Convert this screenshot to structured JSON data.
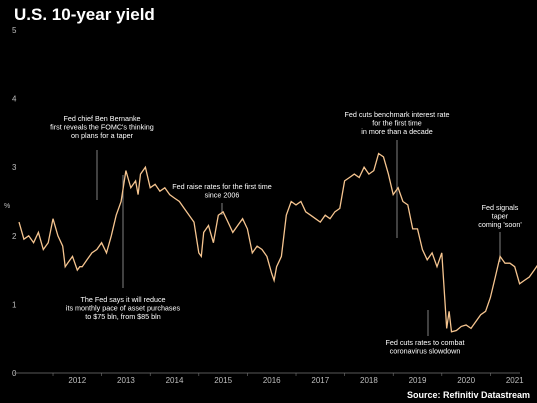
{
  "chart_data": {
    "type": "line",
    "title": "U.S. 10-year yield",
    "source": "Source: Refinitiv Datastream",
    "y_unit": "%",
    "xlabel": "",
    "ylabel": "",
    "ylim": [
      0,
      5
    ],
    "y_ticks": [
      "0",
      "1",
      "2",
      "3",
      "4",
      "5"
    ],
    "x_ticks": [
      "2012",
      "2013",
      "2014",
      "2015",
      "2016",
      "2017",
      "2018",
      "2019",
      "2020",
      "2021"
    ],
    "grid": false,
    "series": [
      {
        "x": [
          2011.3,
          2011.4,
          2011.5,
          2011.6,
          2011.7,
          2011.8,
          2011.9,
          2012.0,
          2012.1,
          2012.2,
          2012.25,
          2012.3,
          2012.4,
          2012.5,
          2012.55,
          2012.6,
          2012.7,
          2012.8,
          2012.9,
          2013.0,
          2013.1,
          2013.2,
          2013.3,
          2013.4,
          2013.5,
          2013.6,
          2013.7,
          2013.75,
          2013.8,
          2013.9,
          2014.0,
          2014.1,
          2014.2,
          2014.3,
          2014.4,
          2014.5,
          2014.6,
          2014.7,
          2014.8,
          2014.9,
          2015.0,
          2015.05,
          2015.1,
          2015.2,
          2015.3,
          2015.4,
          2015.5,
          2015.6,
          2015.7,
          2015.8,
          2015.9,
          2016.0,
          2016.1,
          2016.2,
          2016.3,
          2016.4,
          2016.5,
          2016.55,
          2016.6,
          2016.7,
          2016.8,
          2016.9,
          2017.0,
          2017.1,
          2017.2,
          2017.3,
          2017.4,
          2017.5,
          2017.6,
          2017.7,
          2017.8,
          2017.9,
          2018.0,
          2018.1,
          2018.2,
          2018.3,
          2018.4,
          2018.5,
          2018.6,
          2018.7,
          2018.8,
          2018.9,
          2019.0,
          2019.1,
          2019.2,
          2019.3,
          2019.4,
          2019.5,
          2019.6,
          2019.7,
          2019.8,
          2019.9,
          2020.0,
          2020.1,
          2020.15,
          2020.2,
          2020.3,
          2020.4,
          2020.5,
          2020.6,
          2020.7,
          2020.8,
          2020.9,
          2021.0,
          2021.1,
          2021.2,
          2021.3,
          2021.4,
          2021.5,
          2021.6,
          2021.7,
          2021.8,
          2021.9,
          2022.0,
          2022.1,
          2022.2,
          2022.3,
          2022.4
        ],
        "y": [
          2.2,
          1.95,
          2.0,
          1.9,
          2.05,
          1.8,
          1.9,
          2.25,
          2.0,
          1.85,
          1.55,
          1.6,
          1.7,
          1.5,
          1.55,
          1.55,
          1.65,
          1.75,
          1.8,
          1.9,
          1.75,
          2.0,
          2.3,
          2.5,
          2.95,
          2.7,
          2.8,
          2.6,
          2.9,
          3.0,
          2.7,
          2.75,
          2.65,
          2.7,
          2.6,
          2.55,
          2.5,
          2.4,
          2.3,
          2.2,
          1.75,
          1.7,
          2.05,
          2.15,
          1.9,
          2.3,
          2.35,
          2.2,
          2.05,
          2.15,
          2.25,
          2.1,
          1.75,
          1.85,
          1.8,
          1.7,
          1.45,
          1.35,
          1.55,
          1.7,
          2.3,
          2.5,
          2.45,
          2.5,
          2.35,
          2.3,
          2.25,
          2.2,
          2.3,
          2.25,
          2.35,
          2.4,
          2.8,
          2.85,
          2.9,
          2.85,
          3.0,
          2.9,
          2.95,
          3.2,
          3.15,
          2.9,
          2.6,
          2.7,
          2.5,
          2.45,
          2.1,
          2.1,
          1.8,
          1.65,
          1.75,
          1.55,
          1.75,
          0.65,
          0.9,
          0.6,
          0.62,
          0.68,
          0.7,
          0.65,
          0.75,
          0.85,
          0.9,
          1.1,
          1.4,
          1.7,
          1.6,
          1.6,
          1.55,
          1.3,
          1.35,
          1.4,
          1.5,
          1.6,
          1.55,
          1.6,
          1.55,
          1.6
        ]
      }
    ],
    "annotations": [
      {
        "lines": [
          "Fed chief Ben Bernanke",
          "first reveals the FOMC's thinking",
          "on plans for a taper"
        ]
      },
      {
        "lines": [
          "The Fed says it will reduce",
          "its monthly pace of asset purchases",
          "to $75 bln, from $85 bln"
        ]
      },
      {
        "lines": [
          "Fed raise rates for the first time",
          "since 2006"
        ]
      },
      {
        "lines": [
          "Fed cuts benchmark interest rate",
          "for the first time",
          "in more than a decade"
        ]
      },
      {
        "lines": [
          "Fed cuts rates to combat",
          "coronavirus slowdown"
        ]
      },
      {
        "lines": [
          "Fed signals",
          "taper",
          "coming 'soon'"
        ]
      }
    ],
    "colors": {
      "line": "#f5c48f",
      "background": "#000000",
      "axis": "#777777",
      "text": "#ffffff"
    }
  }
}
